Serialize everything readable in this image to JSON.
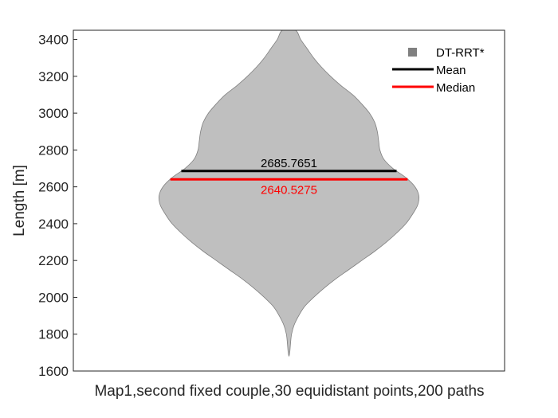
{
  "chart_data": {
    "type": "violin",
    "xlabel": "Map1,second fixed couple,30 equidistant points,200 paths",
    "ylabel": "Length [m]",
    "ylim": [
      1600,
      3450
    ],
    "yticks": [
      1600,
      1800,
      2000,
      2200,
      2400,
      2600,
      2800,
      3000,
      3200,
      3400
    ],
    "yticklabels": [
      "1600",
      "1800",
      "2000",
      "2200",
      "2400",
      "2600",
      "2800",
      "3000",
      "3200",
      "3400"
    ],
    "grid": false,
    "legend_position": "top-right",
    "legend": [
      {
        "label": "DT-RRT*",
        "kind": "marker",
        "color": "#808080"
      },
      {
        "label": "Mean",
        "kind": "line",
        "color": "#000000"
      },
      {
        "label": "Median",
        "kind": "line",
        "color": "#ff0000"
      }
    ],
    "series": [
      {
        "name": "DT-RRT*",
        "fill_color": "#bfbfbf",
        "edge_color": "#7f7f7f",
        "min": 1680,
        "max": 3450,
        "mean": 2685.7651,
        "mean_label": "2685.7651",
        "median": 2640.5275,
        "median_label": "2640.5275",
        "density_profile": [
          [
            1680,
            0.0
          ],
          [
            1700,
            0.006
          ],
          [
            1750,
            0.012
          ],
          [
            1800,
            0.02
          ],
          [
            1850,
            0.04
          ],
          [
            1900,
            0.075
          ],
          [
            1950,
            0.12
          ],
          [
            2000,
            0.19
          ],
          [
            2050,
            0.27
          ],
          [
            2100,
            0.36
          ],
          [
            2150,
            0.46
          ],
          [
            2200,
            0.56
          ],
          [
            2250,
            0.66
          ],
          [
            2300,
            0.75
          ],
          [
            2350,
            0.83
          ],
          [
            2400,
            0.9
          ],
          [
            2450,
            0.95
          ],
          [
            2500,
            0.99
          ],
          [
            2550,
            1.0
          ],
          [
            2600,
            0.97
          ],
          [
            2650,
            0.9
          ],
          [
            2700,
            0.8
          ],
          [
            2750,
            0.73
          ],
          [
            2800,
            0.7
          ],
          [
            2850,
            0.69
          ],
          [
            2900,
            0.68
          ],
          [
            2950,
            0.66
          ],
          [
            3000,
            0.62
          ],
          [
            3050,
            0.56
          ],
          [
            3100,
            0.49
          ],
          [
            3150,
            0.4
          ],
          [
            3200,
            0.32
          ],
          [
            3250,
            0.25
          ],
          [
            3300,
            0.19
          ],
          [
            3350,
            0.14
          ],
          [
            3400,
            0.09
          ],
          [
            3450,
            0.05
          ]
        ]
      }
    ]
  }
}
